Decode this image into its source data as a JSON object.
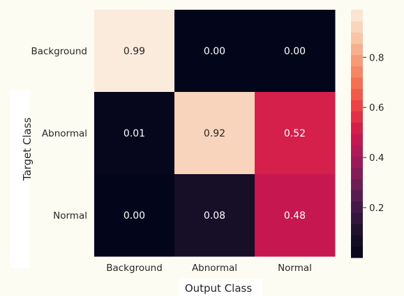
{
  "chart_data": {
    "type": "heatmap",
    "xlabel": "Output Class",
    "ylabel": "Target Class",
    "x_categories": [
      "Background",
      "Abnormal",
      "Normal"
    ],
    "y_categories": [
      "Background",
      "Abnormal",
      "Normal"
    ],
    "values": [
      [
        0.99,
        0.0,
        0.0
      ],
      [
        0.01,
        0.92,
        0.52
      ],
      [
        0.0,
        0.08,
        0.48
      ]
    ],
    "cell_labels": [
      [
        "0.99",
        "0.00",
        "0.00"
      ],
      [
        "0.01",
        "0.92",
        "0.52"
      ],
      [
        "0.00",
        "0.08",
        "0.48"
      ]
    ],
    "colorbar": {
      "ticks": [
        "0.2",
        "0.4",
        "0.6",
        "0.8"
      ],
      "tick_values": [
        0.2,
        0.4,
        0.6,
        0.8
      ],
      "range": [
        0.0,
        0.99
      ],
      "colormap": "rocket"
    },
    "colors": {
      "background": "#fdfcf3",
      "text_dark": "#262626",
      "text_light": "#ffffff"
    }
  }
}
